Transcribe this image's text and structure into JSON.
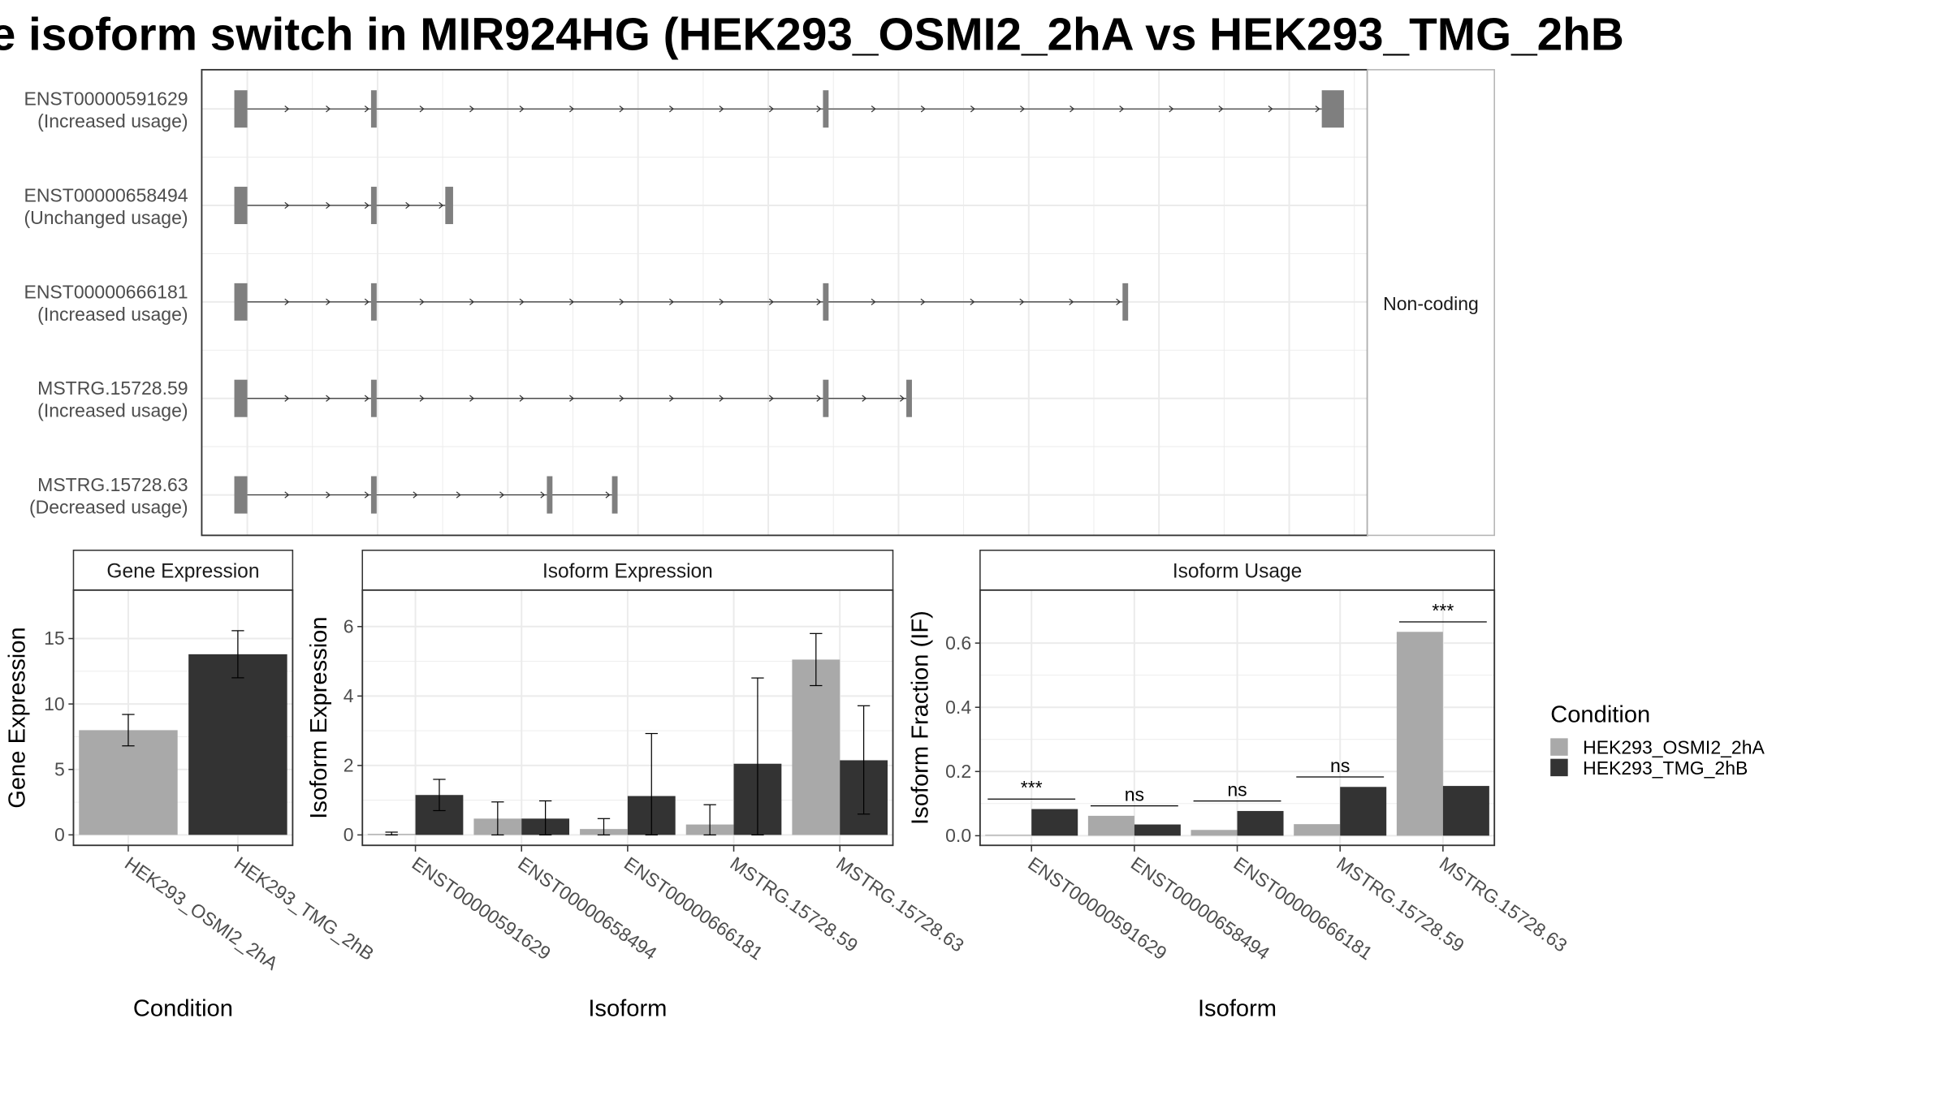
{
  "title": "e isoform switch in MIR924HG (HEK293_OSMI2_2hA vs HEK293_TMG_2hB",
  "colors": {
    "condition_a": "#a9a9a9",
    "condition_b": "#333333",
    "exon": "#7f7f7f",
    "grid": "#ebebeb",
    "strip_fill": "#ffffff"
  },
  "legend": {
    "title": "Condition",
    "items": [
      {
        "label": "HEK293_OSMI2_2hA",
        "color": "#a9a9a9"
      },
      {
        "label": "HEK293_TMG_2hB",
        "color": "#333333"
      }
    ]
  },
  "structure_panel": {
    "facet_label": "Non-coding",
    "isoforms": [
      {
        "id": "ENST00000591629",
        "usage": "(Increased usage)",
        "exons": [
          [
            -0.1,
            0.0
          ],
          [
            0.95,
            0.97
          ],
          [
            4.42,
            4.44
          ],
          [
            8.25,
            8.42
          ]
        ]
      },
      {
        "id": "ENST00000658494",
        "usage": "(Unchanged usage)",
        "exons": [
          [
            -0.1,
            0.0
          ],
          [
            0.95,
            0.97
          ],
          [
            1.52,
            1.58
          ]
        ]
      },
      {
        "id": "ENST00000666181",
        "usage": "(Increased usage)",
        "exons": [
          [
            -0.1,
            0.0
          ],
          [
            0.95,
            0.97
          ],
          [
            4.42,
            4.44
          ],
          [
            6.72,
            6.76
          ]
        ]
      },
      {
        "id": "MSTRG.15728.59",
        "usage": "(Increased usage)",
        "exons": [
          [
            -0.1,
            0.0
          ],
          [
            0.95,
            0.97
          ],
          [
            4.42,
            4.44
          ],
          [
            5.06,
            5.1
          ]
        ]
      },
      {
        "id": "MSTRG.15728.63",
        "usage": "(Decreased usage)",
        "exons": [
          [
            -0.1,
            0.0
          ],
          [
            0.95,
            0.97
          ],
          [
            2.3,
            2.33
          ],
          [
            2.8,
            2.84
          ]
        ]
      }
    ]
  },
  "chart_data": [
    {
      "type": "bar",
      "strip": "Gene Expression",
      "xlabel": "Condition",
      "ylabel": "Gene Expression",
      "ylim": [
        -0.8,
        18.7
      ],
      "yticks": [
        0,
        5,
        10,
        15
      ],
      "categories": [
        "HEK293_OSMI2_2hA",
        "HEK293_TMG_2hB"
      ],
      "values": [
        8.0,
        13.8
      ],
      "errors": [
        [
          6.8,
          9.2
        ],
        [
          12.0,
          15.6
        ]
      ]
    },
    {
      "type": "bar",
      "strip": "Isoform Expression",
      "xlabel": "Isoform",
      "ylabel": "Isoform Expression",
      "ylim": [
        -0.3,
        7.05
      ],
      "yticks": [
        0,
        2,
        4,
        6
      ],
      "categories": [
        "ENST00000591629",
        "ENST00000658494",
        "ENST00000666181",
        "MSTRG.15728.59",
        "MSTRG.15728.63"
      ],
      "series": [
        {
          "name": "HEK293_OSMI2_2hA",
          "values": [
            0.03,
            0.47,
            0.17,
            0.3,
            5.05
          ],
          "errors": [
            [
              0.0,
              0.08
            ],
            [
              0.0,
              0.95
            ],
            [
              0.0,
              0.47
            ],
            [
              0.0,
              0.87
            ],
            [
              4.3,
              5.8
            ]
          ]
        },
        {
          "name": "HEK293_TMG_2hB",
          "values": [
            1.15,
            0.47,
            1.12,
            2.05,
            2.15
          ],
          "errors": [
            [
              0.7,
              1.6
            ],
            [
              0.0,
              0.98
            ],
            [
              0.0,
              2.92
            ],
            [
              0.0,
              4.52
            ],
            [
              0.6,
              3.72
            ]
          ]
        }
      ]
    },
    {
      "type": "bar",
      "strip": "Isoform Usage",
      "xlabel": "Isoform",
      "ylabel": "Isoform Fraction (IF)",
      "ylim": [
        -0.03,
        0.765
      ],
      "yticks": [
        "0.0",
        "0.2",
        "0.4",
        "0.6"
      ],
      "categories": [
        "ENST00000591629",
        "ENST00000658494",
        "ENST00000666181",
        "MSTRG.15728.59",
        "MSTRG.15728.63"
      ],
      "series": [
        {
          "name": "HEK293_OSMI2_2hA",
          "values": [
            0.003,
            0.062,
            0.018,
            0.036,
            0.635
          ]
        },
        {
          "name": "HEK293_TMG_2hB",
          "values": [
            0.083,
            0.035,
            0.077,
            0.152,
            0.155
          ]
        }
      ],
      "significance": [
        "***",
        "ns",
        "ns",
        "ns",
        "***"
      ]
    }
  ]
}
